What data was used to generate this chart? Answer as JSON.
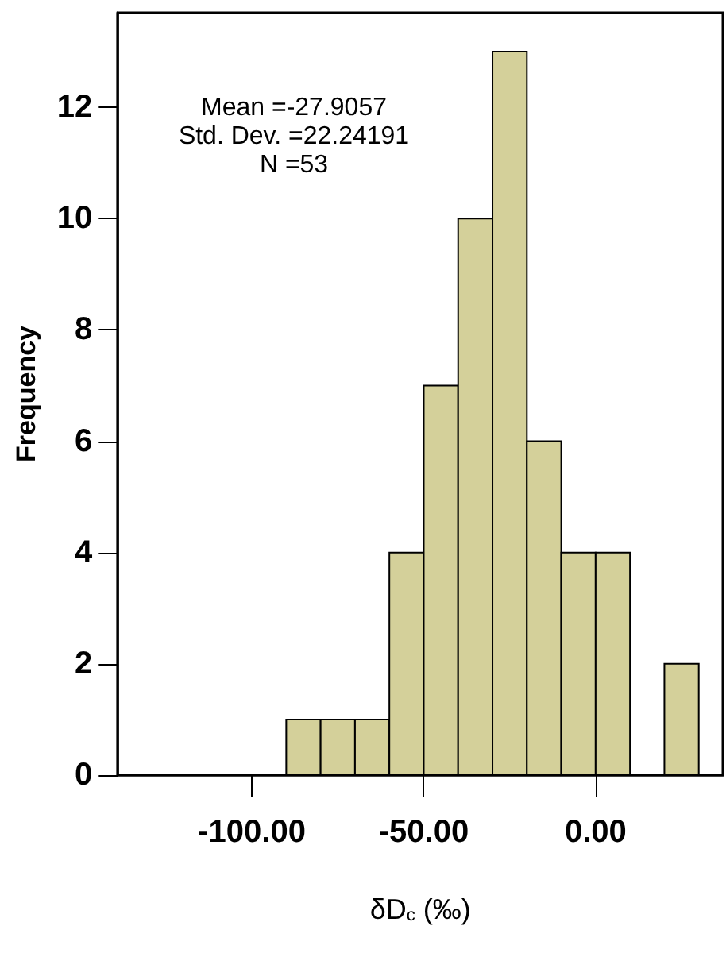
{
  "chart_data": {
    "type": "histogram",
    "xlabel": "δD$_{c}$ (‰)",
    "ylabel": "Frequency",
    "bins": [
      -90,
      -80,
      -70,
      -60,
      -50,
      -40,
      -30,
      -20,
      -10,
      0,
      10,
      20,
      30
    ],
    "values": [
      1,
      1,
      1,
      4,
      7,
      10,
      13,
      6,
      4,
      4,
      0,
      2
    ],
    "color": "#d4d09a",
    "xlim": [
      -139,
      37
    ],
    "xticks": [
      {
        "value": -100,
        "label": "-100.00"
      },
      {
        "value": -50,
        "label": "-50.00"
      },
      {
        "value": 0,
        "label": "0.00"
      }
    ],
    "ylim": [
      0,
      13.7
    ],
    "yticks": [
      0,
      2,
      4,
      6,
      8,
      10,
      12
    ],
    "annotations": [
      "Mean =-27.9057",
      "Std. Dev. =22.24191",
      "N =53"
    ]
  }
}
